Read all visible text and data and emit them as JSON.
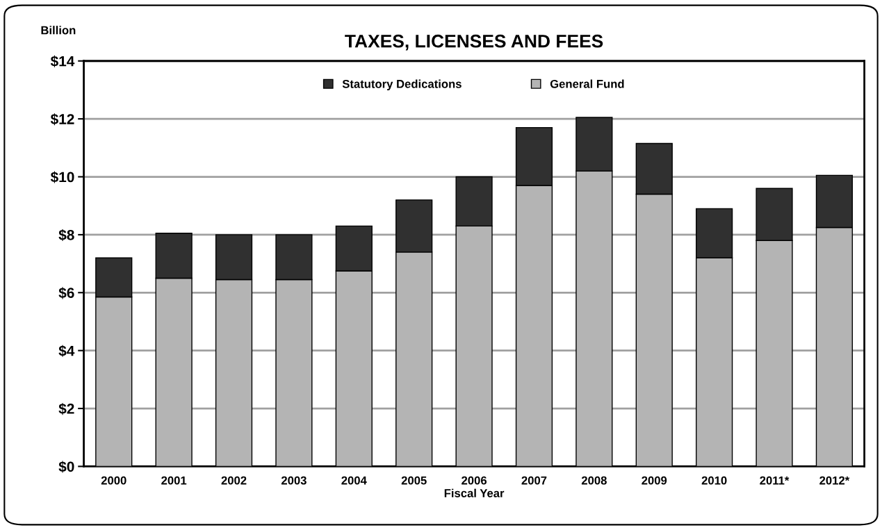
{
  "chart_data": {
    "type": "bar",
    "title": "TAXES, LICENSES AND FEES",
    "ylabel": "Billion",
    "xlabel": "Fiscal Year",
    "categories": [
      "2000",
      "2001",
      "2002",
      "2003",
      "2004",
      "2005",
      "2006",
      "2007",
      "2008",
      "2009",
      "2010",
      "2011*",
      "2012*"
    ],
    "stacked": true,
    "series": [
      {
        "name": "General Fund",
        "color": "#b4b4b4",
        "values": [
          5.85,
          6.5,
          6.45,
          6.45,
          6.75,
          7.4,
          8.3,
          9.7,
          10.2,
          9.4,
          7.2,
          7.8,
          8.25
        ]
      },
      {
        "name": "Statutory Dedications",
        "color": "#303030",
        "values": [
          1.35,
          1.55,
          1.55,
          1.55,
          1.55,
          1.8,
          1.7,
          2.0,
          1.85,
          1.75,
          1.7,
          1.8,
          1.8
        ]
      }
    ],
    "ylim": [
      0,
      14
    ],
    "yticks": [
      {
        "value": 0,
        "label": "$0"
      },
      {
        "value": 2,
        "label": "$2"
      },
      {
        "value": 4,
        "label": "$4"
      },
      {
        "value": 6,
        "label": "$6"
      },
      {
        "value": 8,
        "label": "$8"
      },
      {
        "value": 10,
        "label": "$10"
      },
      {
        "value": 12,
        "label": "$12"
      },
      {
        "value": 14,
        "label": "$14"
      }
    ],
    "grid": "y",
    "legend": "top"
  }
}
